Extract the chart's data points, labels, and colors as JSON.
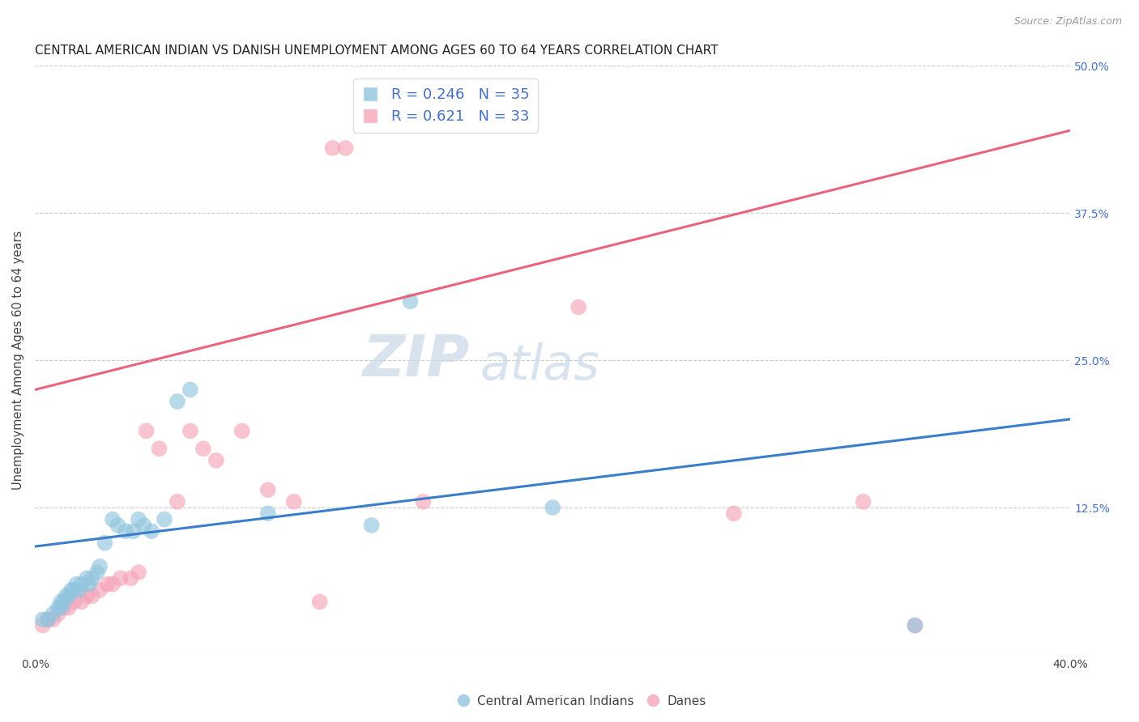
{
  "title": "CENTRAL AMERICAN INDIAN VS DANISH UNEMPLOYMENT AMONG AGES 60 TO 64 YEARS CORRELATION CHART",
  "source": "Source: ZipAtlas.com",
  "ylabel": "Unemployment Among Ages 60 to 64 years",
  "xlim": [
    0.0,
    0.4
  ],
  "ylim": [
    0.0,
    0.5
  ],
  "xticks": [
    0.0,
    0.1,
    0.2,
    0.3,
    0.4
  ],
  "yticks": [
    0.0,
    0.125,
    0.25,
    0.375,
    0.5
  ],
  "xtick_labels": [
    "0.0%",
    "",
    "",
    "",
    "40.0%"
  ],
  "ytick_right_labels": [
    "",
    "12.5%",
    "25.0%",
    "37.5%",
    "50.0%"
  ],
  "blue_color": "#92C5DE",
  "pink_color": "#F4A5B8",
  "blue_line_color": "#3A7DC9",
  "pink_line_color": "#E8637E",
  "watermark_zip": "ZIP",
  "watermark_atlas": "atlas",
  "blue_scatter_x": [
    0.003,
    0.005,
    0.007,
    0.009,
    0.01,
    0.01,
    0.011,
    0.012,
    0.013,
    0.014,
    0.015,
    0.016,
    0.017,
    0.018,
    0.02,
    0.021,
    0.022,
    0.024,
    0.025,
    0.027,
    0.03,
    0.032,
    0.035,
    0.038,
    0.04,
    0.042,
    0.045,
    0.05,
    0.055,
    0.06,
    0.09,
    0.13,
    0.145,
    0.2,
    0.34
  ],
  "blue_scatter_y": [
    0.03,
    0.03,
    0.035,
    0.04,
    0.04,
    0.045,
    0.045,
    0.05,
    0.05,
    0.055,
    0.055,
    0.06,
    0.055,
    0.06,
    0.065,
    0.06,
    0.065,
    0.07,
    0.075,
    0.095,
    0.115,
    0.11,
    0.105,
    0.105,
    0.115,
    0.11,
    0.105,
    0.115,
    0.215,
    0.225,
    0.12,
    0.11,
    0.3,
    0.125,
    0.025
  ],
  "pink_scatter_x": [
    0.003,
    0.005,
    0.007,
    0.009,
    0.011,
    0.013,
    0.015,
    0.018,
    0.02,
    0.022,
    0.025,
    0.028,
    0.03,
    0.033,
    0.037,
    0.04,
    0.043,
    0.048,
    0.055,
    0.06,
    0.065,
    0.07,
    0.08,
    0.09,
    0.1,
    0.11,
    0.115,
    0.12,
    0.15,
    0.21,
    0.27,
    0.32,
    0.34
  ],
  "pink_scatter_y": [
    0.025,
    0.03,
    0.03,
    0.035,
    0.04,
    0.04,
    0.045,
    0.045,
    0.05,
    0.05,
    0.055,
    0.06,
    0.06,
    0.065,
    0.065,
    0.07,
    0.19,
    0.175,
    0.13,
    0.19,
    0.175,
    0.165,
    0.19,
    0.14,
    0.13,
    0.045,
    0.43,
    0.43,
    0.13,
    0.295,
    0.12,
    0.13,
    0.025
  ],
  "blue_line_x0": 0.0,
  "blue_line_y0": 0.092,
  "blue_line_x1": 0.4,
  "blue_line_y1": 0.2,
  "pink_line_x0": 0.0,
  "pink_line_y0": 0.225,
  "pink_line_x1": 0.4,
  "pink_line_y1": 0.445,
  "grid_color": "#cccccc",
  "background_color": "#ffffff",
  "legend1_label": "Central American Indians",
  "legend2_label": "Danes",
  "title_fontsize": 11,
  "axis_label_fontsize": 10.5,
  "tick_fontsize": 10,
  "watermark_fontsize_zip": 52,
  "watermark_fontsize_atlas": 44
}
